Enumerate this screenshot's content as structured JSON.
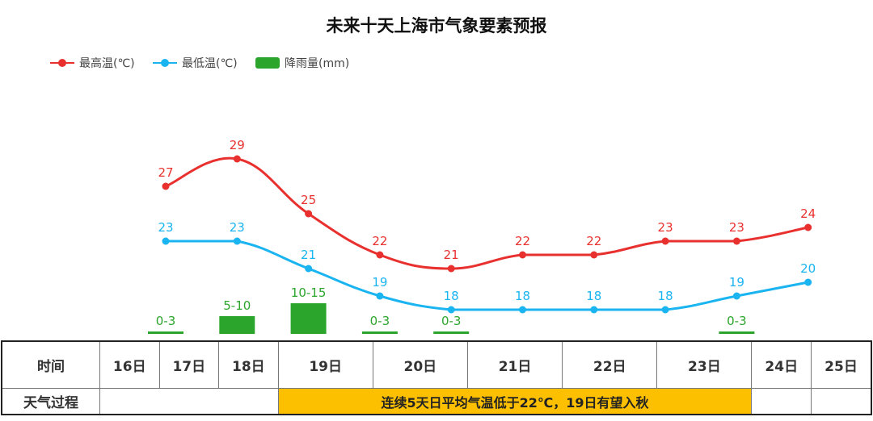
{
  "chart_data": {
    "type": "line",
    "title": "未来十天上海市气象要素预报",
    "categories": [
      "16日",
      "17日",
      "18日",
      "19日",
      "20日",
      "21日",
      "22日",
      "23日",
      "24日",
      "25日"
    ],
    "series": [
      {
        "name": "最高温(℃)",
        "color": "#e8312f",
        "values": [
          27,
          29,
          25,
          22,
          21,
          22,
          22,
          23,
          23,
          24
        ]
      },
      {
        "name": "最低温(℃)",
        "color": "#1ab4f0",
        "values": [
          23,
          23,
          21,
          19,
          18,
          18,
          18,
          18,
          19,
          20
        ]
      },
      {
        "name": "降雨量(mm)",
        "color": "#2ca52c",
        "type": "bar",
        "values": [
          "0-3",
          "5-10",
          "10-15",
          "0-3",
          "0-3",
          "",
          "",
          "",
          "0-3",
          ""
        ]
      }
    ],
    "legend_position": "top-left",
    "grid": false
  },
  "table": {
    "row1_header": "时间",
    "row2_header": "天气过程",
    "banner": "连续5天日平均气温低于22℃，19日有望入秋",
    "banner_color": "#fcc000"
  }
}
